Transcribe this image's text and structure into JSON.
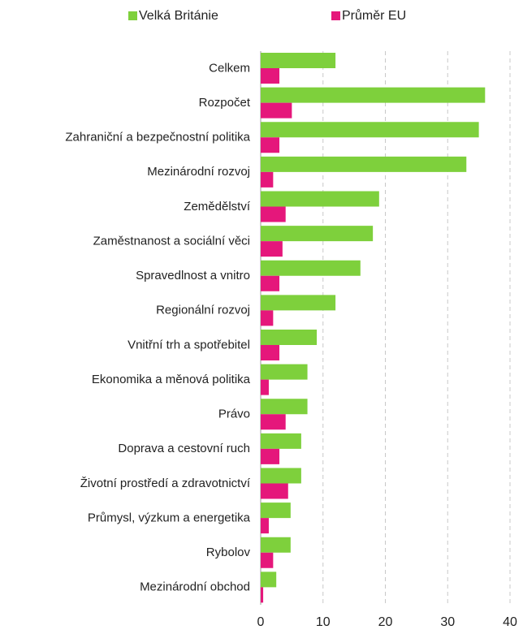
{
  "chart_data": {
    "type": "hbar",
    "categories": [
      "Celkem",
      "Rozpočet",
      "Zahraniční a bezpečnostní politika",
      "Mezinárodní rozvoj",
      "Zemědělství",
      "Zaměstnanost a sociální věci",
      "Spravedlnost a vnitro",
      "Regionální rozvoj",
      "Vnitřní trh a spotřebitel",
      "Ekonomika a měnová politika",
      "Právo",
      "Doprava a cestovní ruch",
      "Životní prostředí a zdravotnictví",
      "Průmysl, výzkum a energetika",
      "Rybolov",
      "Mezinárodní obchod"
    ],
    "series": [
      {
        "name": "Velká Británie",
        "color": "#7ed03c",
        "values": [
          12,
          36,
          35,
          33,
          19,
          18,
          16,
          12,
          9,
          7.5,
          7.5,
          6.5,
          6.5,
          4.8,
          4.8,
          2.5
        ]
      },
      {
        "name": "Průměr EU",
        "color": "#e5177b",
        "values": [
          3,
          5,
          3,
          2,
          4,
          3.5,
          3,
          2,
          3,
          1.3,
          4,
          3,
          4.4,
          1.3,
          2,
          0.4
        ]
      }
    ],
    "xlim": [
      0,
      40
    ],
    "xticks": [
      0,
      10,
      20,
      30,
      40
    ],
    "grid": true,
    "legend": "top"
  }
}
